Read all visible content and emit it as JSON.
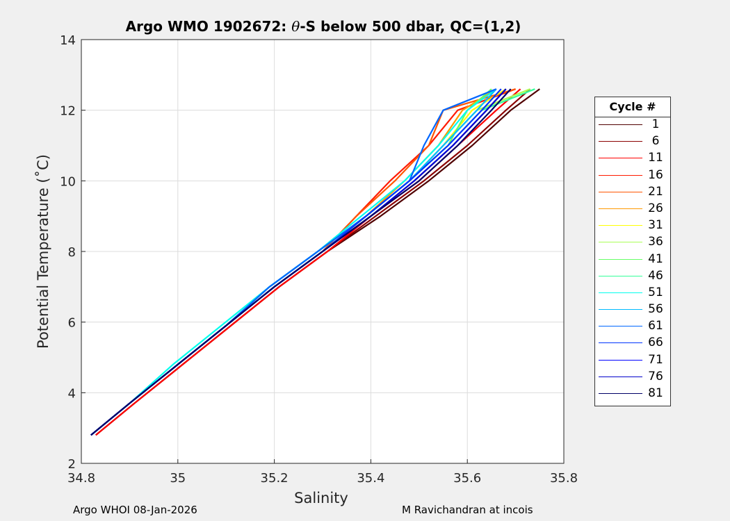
{
  "title": {
    "prefix": "Argo WMO 1902672: ",
    "theta": "θ",
    "suffix": "-S below 500 dbar,  QC=(1,2)"
  },
  "footer": {
    "left": "Argo WHOI 08-Jan-2026",
    "right": "M Ravichandran at incois"
  },
  "chart_data": {
    "type": "line",
    "title": "Argo WMO 1902672: θ-S below 500 dbar,  QC=(1,2)",
    "xlabel": "Salinity",
    "ylabel": "Potential Temperature (˚C)",
    "xlim": [
      34.8,
      35.8
    ],
    "ylim": [
      2,
      14
    ],
    "xticks": [
      "34.8",
      "35",
      "35.2",
      "35.4",
      "35.6",
      "35.8"
    ],
    "yticks": [
      "2",
      "4",
      "6",
      "8",
      "10",
      "12",
      "14"
    ],
    "grid": true,
    "legend": {
      "title": "Cycle #",
      "placement": "right"
    },
    "t": [
      2.8,
      3.7,
      4.8,
      5.9,
      7.0,
      8.0,
      9.0,
      10.0,
      11.0,
      12.0,
      12.6
    ],
    "series": [
      {
        "name": "1",
        "color": "#500000",
        "s": [
          34.83,
          34.91,
          35.01,
          35.11,
          35.21,
          35.31,
          35.42,
          35.52,
          35.61,
          35.69,
          35.75
        ]
      },
      {
        "name": "6",
        "color": "#8b0000",
        "s": [
          34.83,
          34.91,
          35.01,
          35.11,
          35.21,
          35.31,
          35.41,
          35.51,
          35.6,
          35.68,
          35.73
        ]
      },
      {
        "name": "11",
        "color": "#ff0000",
        "s": [
          34.83,
          34.91,
          35.01,
          35.11,
          35.21,
          35.31,
          35.4,
          35.5,
          35.58,
          35.66,
          35.71
        ]
      },
      {
        "name": "16",
        "color": "#ff1a00",
        "s": [
          34.82,
          34.9,
          35.0,
          35.1,
          35.2,
          35.3,
          35.37,
          35.44,
          35.52,
          35.58,
          35.7
        ]
      },
      {
        "name": "21",
        "color": "#ff5500",
        "s": [
          34.82,
          34.9,
          35.0,
          35.1,
          35.2,
          35.3,
          35.37,
          35.45,
          35.52,
          35.55,
          35.7
        ]
      },
      {
        "name": "26",
        "color": "#ff9900",
        "s": [
          34.82,
          34.9,
          35.0,
          35.1,
          35.2,
          35.3,
          35.39,
          35.47,
          35.54,
          35.59,
          35.66
        ]
      },
      {
        "name": "31",
        "color": "#ffff00",
        "s": [
          34.82,
          34.9,
          35.0,
          35.1,
          35.2,
          35.3,
          35.39,
          35.48,
          35.55,
          35.61,
          35.68
        ]
      },
      {
        "name": "36",
        "color": "#aaff55",
        "s": [
          34.82,
          34.9,
          35.0,
          35.1,
          35.2,
          35.3,
          35.39,
          35.48,
          35.55,
          35.62,
          35.73
        ]
      },
      {
        "name": "41",
        "color": "#66ff66",
        "s": [
          34.82,
          34.9,
          35.0,
          35.1,
          35.19,
          35.29,
          35.39,
          35.48,
          35.56,
          35.6,
          35.65
        ]
      },
      {
        "name": "46",
        "color": "#33ff99",
        "s": [
          34.82,
          34.9,
          35.0,
          35.1,
          35.19,
          35.29,
          35.39,
          35.48,
          35.56,
          35.63,
          35.74
        ]
      },
      {
        "name": "51",
        "color": "#00ffee",
        "s": [
          34.82,
          34.9,
          34.99,
          35.09,
          35.19,
          35.29,
          35.38,
          35.47,
          35.54,
          35.6,
          35.66
        ]
      },
      {
        "name": "56",
        "color": "#00bbff",
        "s": [
          34.82,
          34.9,
          35.0,
          35.1,
          35.19,
          35.29,
          35.39,
          35.48,
          35.55,
          35.62,
          35.66
        ]
      },
      {
        "name": "61",
        "color": "#0066ff",
        "s": [
          34.82,
          34.9,
          35.0,
          35.1,
          35.19,
          35.29,
          35.39,
          35.48,
          35.51,
          35.55,
          35.66
        ]
      },
      {
        "name": "66",
        "color": "#0033ff",
        "s": [
          34.82,
          34.9,
          35.0,
          35.1,
          35.2,
          35.3,
          35.39,
          35.48,
          35.56,
          35.63,
          35.67
        ]
      },
      {
        "name": "71",
        "color": "#0000ff",
        "s": [
          34.82,
          34.9,
          35.0,
          35.1,
          35.2,
          35.3,
          35.4,
          35.49,
          35.57,
          35.64,
          35.68
        ]
      },
      {
        "name": "76",
        "color": "#0000cc",
        "s": [
          34.82,
          34.9,
          35.0,
          35.1,
          35.2,
          35.3,
          35.4,
          35.49,
          35.57,
          35.64,
          35.68
        ]
      },
      {
        "name": "81",
        "color": "#000066",
        "s": [
          34.82,
          34.9,
          35.0,
          35.1,
          35.2,
          35.3,
          35.4,
          35.5,
          35.58,
          35.65,
          35.69
        ]
      }
    ]
  }
}
